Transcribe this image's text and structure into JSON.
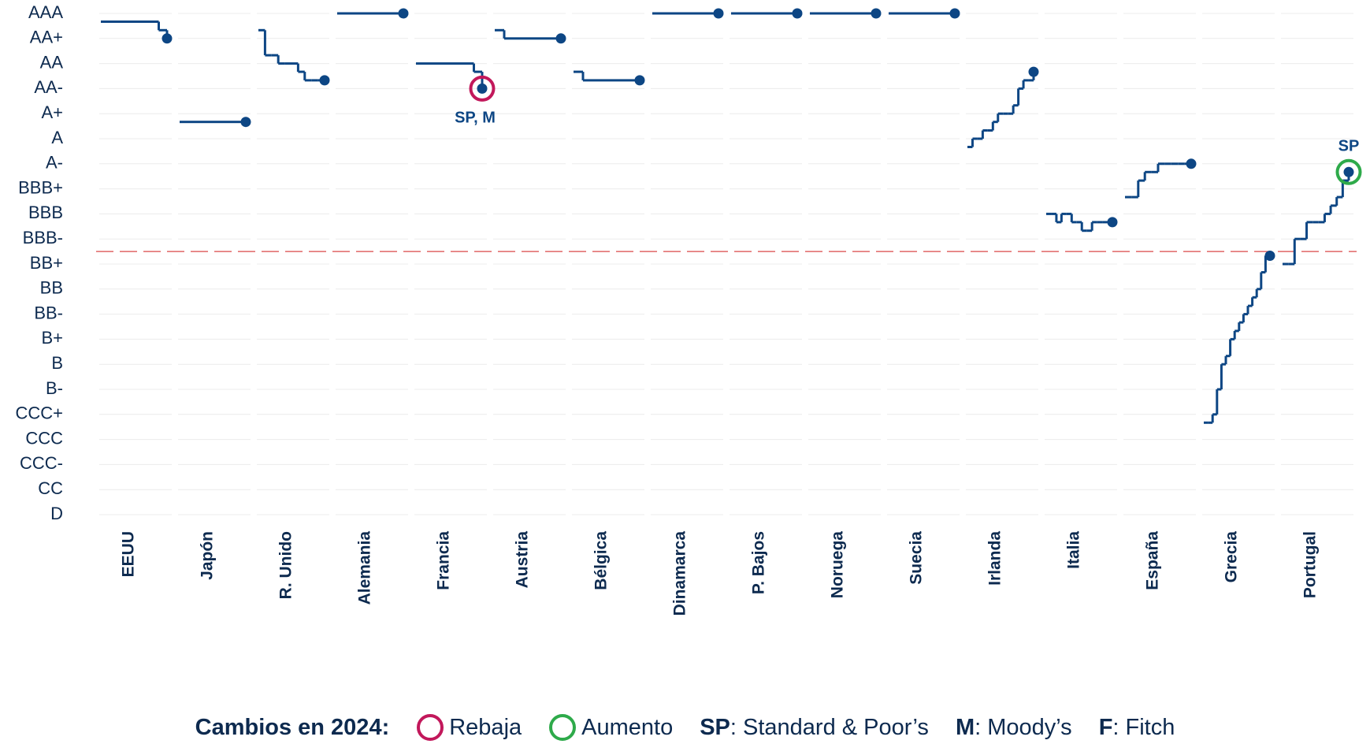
{
  "chart_data": {
    "type": "step-panels",
    "ylim": [
      0,
      20
    ],
    "yticks": [
      {
        "value": 0,
        "label": "D"
      },
      {
        "value": 1,
        "label": "CC"
      },
      {
        "value": 2,
        "label": "CCC-"
      },
      {
        "value": 3,
        "label": "CCC"
      },
      {
        "value": 4,
        "label": "CCC+"
      },
      {
        "value": 5,
        "label": "B-"
      },
      {
        "value": 6,
        "label": "B"
      },
      {
        "value": 7,
        "label": "B+"
      },
      {
        "value": 8,
        "label": "BB-"
      },
      {
        "value": 9,
        "label": "BB"
      },
      {
        "value": 10,
        "label": "BB+"
      },
      {
        "value": 11,
        "label": "BBB-"
      },
      {
        "value": 12,
        "label": "BBB"
      },
      {
        "value": 13,
        "label": "BBB+"
      },
      {
        "value": 14,
        "label": "A-"
      },
      {
        "value": 15,
        "label": "A"
      },
      {
        "value": 16,
        "label": "A+"
      },
      {
        "value": 17,
        "label": "AA-"
      },
      {
        "value": 18,
        "label": "AA"
      },
      {
        "value": 19,
        "label": "AA+"
      },
      {
        "value": 20,
        "label": "AAA"
      }
    ],
    "grid": true,
    "line_color": "#0d4684",
    "reference_line": {
      "value": 10.5,
      "color": "#e06666"
    },
    "series": [
      {
        "name": "EEUU",
        "values": [
          19.67,
          19.67,
          19.67,
          19.67,
          19.67,
          19.67,
          19.67,
          19.33,
          19
        ]
      },
      {
        "name": "Japón",
        "values": [
          15.67,
          15.67,
          15.67,
          15.67,
          15.67,
          15.67,
          15.67,
          15.67
        ]
      },
      {
        "name": "R. Unido",
        "values": [
          19.33,
          18.33,
          18.33,
          18,
          18,
          18,
          17.67,
          17.33,
          17.33,
          17.33,
          17.33
        ]
      },
      {
        "name": "Alemania",
        "values": [
          20,
          20,
          20,
          20,
          20,
          20,
          20,
          20
        ]
      },
      {
        "name": "Francia",
        "values": [
          18,
          18,
          18,
          18,
          18,
          18,
          18,
          17.67,
          17
        ],
        "ring": "#c2185b",
        "note": "SP, M"
      },
      {
        "name": "Austria",
        "values": [
          19.33,
          19,
          19,
          19,
          19,
          19,
          19,
          19
        ]
      },
      {
        "name": "Bélgica",
        "values": [
          17.67,
          17.33,
          17.33,
          17.33,
          17.33,
          17.33,
          17.33,
          17.33
        ]
      },
      {
        "name": "Dinamarca",
        "values": [
          20,
          20,
          20,
          20,
          20,
          20,
          20,
          20
        ]
      },
      {
        "name": "P. Bajos",
        "values": [
          20,
          20,
          20,
          20,
          20,
          20,
          20,
          20
        ]
      },
      {
        "name": "Noruega",
        "values": [
          20,
          20,
          20,
          20,
          20,
          20,
          20,
          20
        ]
      },
      {
        "name": "Suecia",
        "values": [
          20,
          20,
          20,
          20,
          20,
          20,
          20,
          20
        ]
      },
      {
        "name": "Irlanda",
        "values": [
          14.67,
          15,
          15,
          15.33,
          15.33,
          15.67,
          16,
          16,
          16,
          16.33,
          17,
          17.33,
          17.33,
          17.67
        ]
      },
      {
        "name": "Italia",
        "values": [
          12,
          12,
          11.67,
          12,
          12,
          11.67,
          11.67,
          11.33,
          11.33,
          11.67,
          11.67,
          11.67,
          11.67,
          11.67
        ]
      },
      {
        "name": "España",
        "values": [
          12.67,
          12.67,
          13.33,
          13.67,
          13.67,
          14,
          14,
          14,
          14,
          14,
          14
        ]
      },
      {
        "name": "Grecia",
        "values": [
          3.67,
          3.67,
          4,
          5,
          6,
          6.33,
          7,
          7.33,
          7.67,
          8,
          8.33,
          8.67,
          9,
          9.67,
          10.33,
          10.33
        ]
      },
      {
        "name": "Portugal",
        "values": [
          10,
          10,
          11,
          11,
          11.67,
          11.67,
          11.67,
          12,
          12.33,
          12.67,
          13.33,
          13.67
        ],
        "ring": "#2eaa4a",
        "note": "SP"
      }
    ],
    "legend": {
      "title": "Cambios en 2024:",
      "changes": [
        {
          "label": "Rebaja",
          "color": "#c2185b"
        },
        {
          "label": "Aumento",
          "color": "#2eaa4a"
        }
      ],
      "agencies": [
        {
          "code": "SP",
          "text": ": Standard & Poor’s"
        },
        {
          "code": "M",
          "text": ": Moody’s"
        },
        {
          "code": "F",
          "text": ": Fitch"
        }
      ]
    }
  }
}
